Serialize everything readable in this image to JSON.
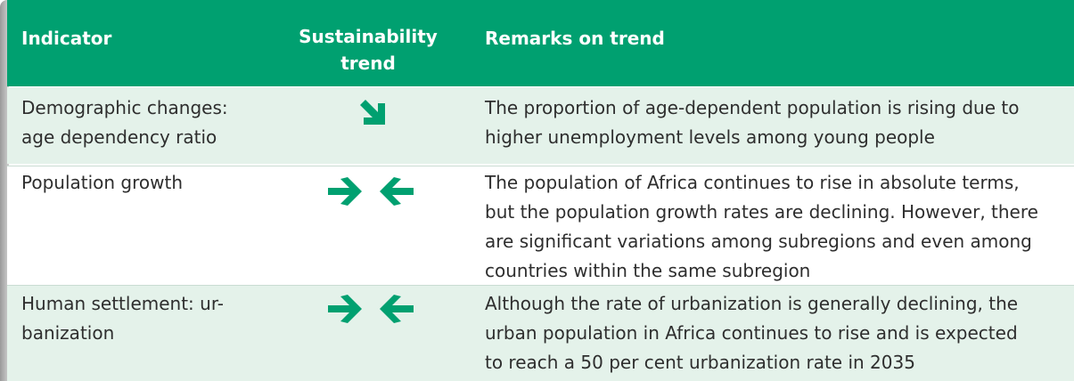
{
  "table": {
    "headers": [
      "Indicator",
      [
        "Sustainability",
        "trend"
      ],
      "Remarks on trend"
    ],
    "rows": [
      {
        "indicator": [
          "Demographic changes:",
          "age dependency ratio"
        ],
        "remarks": [
          "The proportion of age-dependent population is rising due to",
          "higher unemployment levels among young people"
        ]
      },
      {
        "indicator": [
          "Population growth"
        ],
        "remarks": [
          "The population of Africa continues to rise in absolute terms,",
          "but the population growth rates are declining. However, there",
          "are significant variations among subregions and even among",
          "countries within the same subregion"
        ]
      },
      {
        "indicator": [
          "Human settlement: ur-",
          "banization"
        ],
        "remarks": [
          "Although the rate of urbanization is generally declining, the",
          "urban population in Africa continues to rise and is expected",
          "to reach a 50 per cent urbanization rate in 2035"
        ]
      }
    ]
  }
}
